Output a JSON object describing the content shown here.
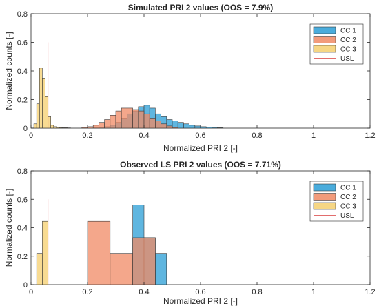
{
  "colors": {
    "cc1": "#2a9ed6",
    "cc2": "#f08a64",
    "cc3": "#f5cf6e",
    "usl": "#e26d6d",
    "axis": "#262626",
    "bar_edge": "#3a3a3a"
  },
  "chart_data": [
    {
      "type": "bar",
      "title": "Simulated PRI 2 values (OOS = 7.9%)",
      "xlabel": "Normalized PRI 2 [-]",
      "ylabel": "Normalized counts [-]",
      "xlim": [
        0,
        1.2
      ],
      "ylim": [
        0,
        0.8
      ],
      "xticks": [
        "0",
        "0.2",
        "0.4",
        "0.6",
        "0.8",
        "1",
        "1.2"
      ],
      "yticks": [
        "0",
        "0.2",
        "0.4",
        "0.6",
        "0.8"
      ],
      "grid": false,
      "legend_position": "top-right",
      "legend": [
        "CC 1",
        "CC 2",
        "CC 3",
        "USL"
      ],
      "usl": {
        "name": "USL",
        "x": 0.06,
        "y_top": 0.6
      },
      "series": [
        {
          "name": "CC 1",
          "edges": [
            0.22,
            0.24,
            0.26,
            0.28,
            0.3,
            0.32,
            0.34,
            0.36,
            0.38,
            0.4,
            0.42,
            0.44,
            0.46,
            0.48,
            0.5,
            0.52,
            0.54,
            0.56,
            0.58,
            0.6,
            0.62,
            0.64,
            0.66,
            0.68
          ],
          "values": [
            0.002,
            0.005,
            0.01,
            0.02,
            0.04,
            0.07,
            0.1,
            0.12,
            0.15,
            0.16,
            0.14,
            0.1,
            0.08,
            0.06,
            0.05,
            0.04,
            0.03,
            0.02,
            0.015,
            0.01,
            0.008,
            0.005,
            0.003
          ]
        },
        {
          "name": "CC 2",
          "edges": [
            0.18,
            0.2,
            0.22,
            0.24,
            0.26,
            0.28,
            0.3,
            0.32,
            0.34,
            0.36,
            0.38,
            0.4,
            0.42,
            0.44,
            0.46,
            0.48,
            0.5,
            0.52
          ],
          "values": [
            0.005,
            0.01,
            0.02,
            0.04,
            0.06,
            0.09,
            0.12,
            0.14,
            0.14,
            0.13,
            0.12,
            0.1,
            0.07,
            0.05,
            0.03,
            0.015,
            0.005
          ]
        },
        {
          "name": "CC 3",
          "edges": [
            0.01,
            0.02,
            0.03,
            0.04,
            0.05,
            0.06,
            0.07,
            0.08,
            0.09,
            0.1,
            0.11,
            0.12,
            0.13,
            0.14
          ],
          "values": [
            0.03,
            0.17,
            0.42,
            0.35,
            0.22,
            0.08,
            0.02,
            0.01,
            0.005,
            0.004,
            0.003,
            0.003,
            0.002
          ]
        }
      ]
    },
    {
      "type": "bar",
      "title": "Observed LS PRI 2 values (OOS = 7.71%)",
      "xlabel": "Normalized PRI 2 [-]",
      "ylabel": "Normalized counts [-]",
      "xlim": [
        0,
        1.2
      ],
      "ylim": [
        0,
        0.8
      ],
      "xticks": [
        "0",
        "0.2",
        "0.4",
        "0.6",
        "0.8",
        "1",
        "1.2"
      ],
      "yticks": [
        "0",
        "0.2",
        "0.4",
        "0.6",
        "0.8"
      ],
      "grid": false,
      "legend_position": "top-right",
      "legend": [
        "CC 1",
        "CC 2",
        "CC 3",
        "USL"
      ],
      "usl": {
        "name": "USL",
        "x": 0.06,
        "y_top": 0.6
      },
      "series": [
        {
          "name": "CC 1",
          "edges": [
            0.36,
            0.4,
            0.44,
            0.48
          ],
          "values": [
            0.56,
            0.33,
            0.22
          ]
        },
        {
          "name": "CC 2",
          "edges": [
            0.2,
            0.28,
            0.36,
            0.44
          ],
          "values": [
            0.445,
            0.22,
            0.33
          ]
        },
        {
          "name": "CC 3",
          "edges": [
            0.02,
            0.04,
            0.06
          ],
          "values": [
            0.22,
            0.445
          ]
        }
      ]
    }
  ]
}
